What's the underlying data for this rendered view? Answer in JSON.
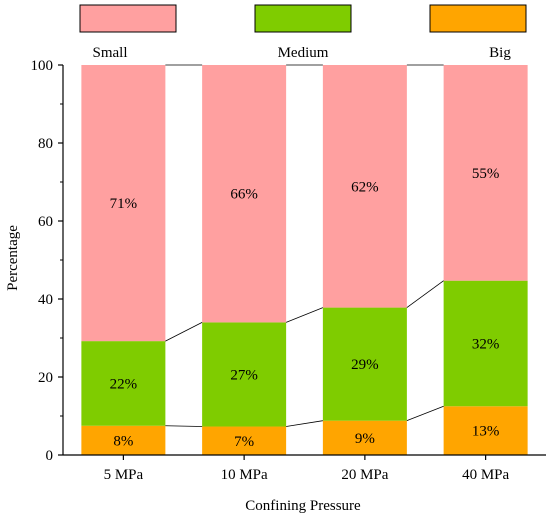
{
  "chart_data": {
    "type": "bar",
    "stacked": true,
    "xlabel": "Confining Pressure",
    "ylabel": "Percentage",
    "ylim": [
      0,
      100
    ],
    "yticks": [
      0,
      20,
      40,
      60,
      80,
      100
    ],
    "categories": [
      "5 MPa",
      "10 MPa",
      "20 MPa",
      "40 MPa"
    ],
    "series": [
      {
        "name": "Big",
        "color": "#FFA500",
        "values": [
          7.5,
          7.3,
          8.8,
          12.5
        ],
        "labels": [
          "8%",
          "7%",
          "9%",
          "13%"
        ]
      },
      {
        "name": "Medium",
        "color": "#7FCC00",
        "values": [
          21.7,
          26.7,
          29.0,
          32.2
        ],
        "labels": [
          "22%",
          "27%",
          "29%",
          "32%"
        ]
      },
      {
        "name": "Small",
        "color": "#FFA0A0",
        "values": [
          70.8,
          66.0,
          62.2,
          55.3
        ],
        "labels": [
          "71%",
          "66%",
          "62%",
          "55%"
        ]
      }
    ],
    "legend": {
      "position": "top",
      "order": [
        "Small",
        "Medium",
        "Big"
      ]
    },
    "connector_lines": true,
    "grid": false
  }
}
